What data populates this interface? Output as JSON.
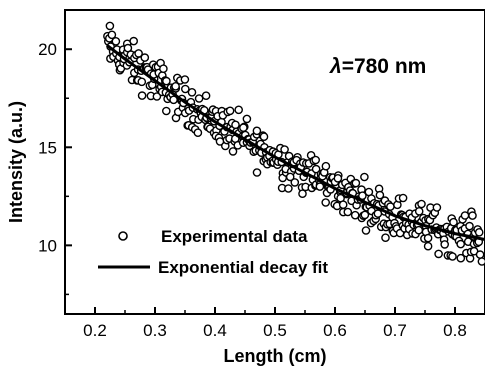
{
  "chart_data": {
    "type": "scatter",
    "xlabel": "Length (cm)",
    "ylabel": "Intensity (a.u.)",
    "xlim": [
      0.15,
      0.85
    ],
    "ylim": [
      6.5,
      22
    ],
    "x_ticks": [
      "0.2",
      "0.3",
      "0.4",
      "0.5",
      "0.6",
      "0.7",
      "0.8"
    ],
    "y_ticks": [
      "10",
      "15",
      "20"
    ],
    "x_tick_values": [
      0.2,
      0.3,
      0.4,
      0.5,
      0.6,
      0.7,
      0.8
    ],
    "y_tick_values": [
      10,
      15,
      20
    ],
    "annotation": {
      "prefix": "λ",
      "text": "=780 nm"
    },
    "legend": {
      "placement": "bottom-left",
      "entries": [
        {
          "label": "Experimental data",
          "marker": "open-circle"
        },
        {
          "label": "Exponential decay fit",
          "marker": "line"
        }
      ]
    },
    "series": [
      {
        "name": "Experimental data",
        "kind": "scatter",
        "color": "#000000",
        "x_range": [
          0.22,
          0.85
        ],
        "n_points": 420,
        "noise_amplitude": 0.55
      },
      {
        "name": "Exponential decay fit",
        "kind": "line",
        "color": "#000000",
        "x": [
          0.22,
          0.25,
          0.3,
          0.35,
          0.4,
          0.45,
          0.5,
          0.55,
          0.6,
          0.65,
          0.7,
          0.75,
          0.8,
          0.85
        ],
        "y": [
          20.2,
          19.5,
          18.4,
          17.3,
          16.3,
          15.4,
          14.5,
          13.7,
          12.9,
          12.2,
          11.5,
          11.0,
          10.6,
          10.3
        ]
      }
    ]
  }
}
